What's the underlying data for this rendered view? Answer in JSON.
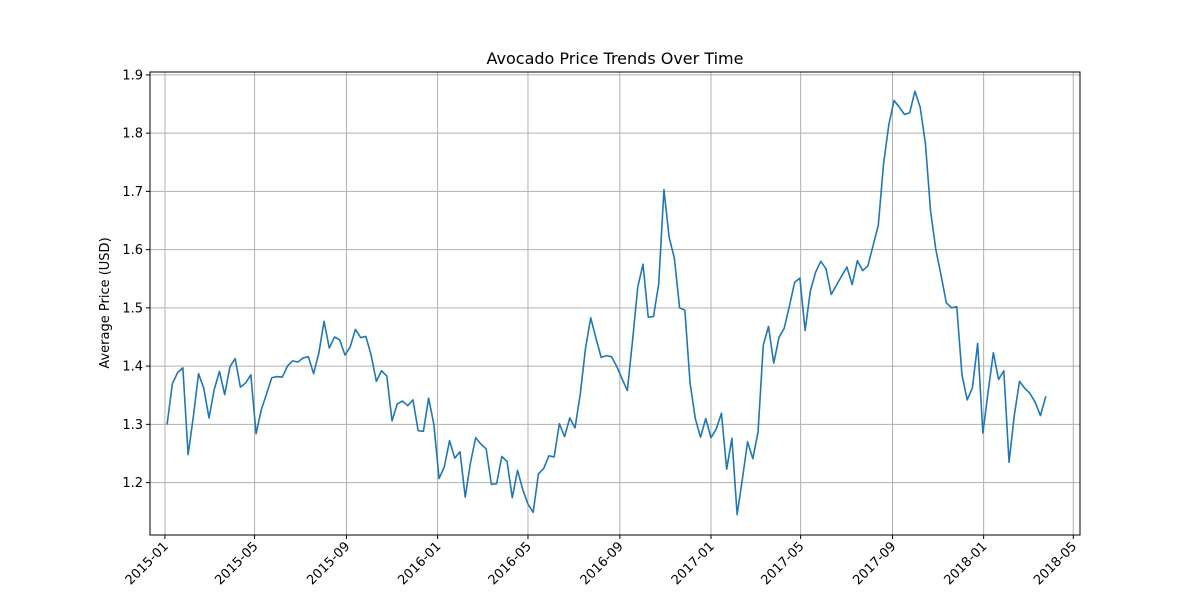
{
  "chart_data": {
    "type": "line",
    "title": "Avocado Price Trends Over Time",
    "xlabel": "",
    "ylabel": "Average Price (USD)",
    "grid": true,
    "x_axis_type": "date",
    "xlim": [
      "2014-12-12",
      "2018-05-10"
    ],
    "ylim": [
      1.11,
      1.905
    ],
    "x_ticks": [
      "2015-01",
      "2015-05",
      "2015-09",
      "2016-01",
      "2016-05",
      "2016-09",
      "2017-01",
      "2017-05",
      "2017-09",
      "2018-01",
      "2018-05"
    ],
    "y_ticks": [
      1.2,
      1.3,
      1.4,
      1.5,
      1.6,
      1.7,
      1.8,
      1.9
    ],
    "series_color": "#1f77b4",
    "series": [
      {
        "x": [
          "2015-01-04",
          "2015-01-11",
          "2015-01-18",
          "2015-01-25",
          "2015-02-01",
          "2015-02-08",
          "2015-02-15",
          "2015-02-22",
          "2015-03-01",
          "2015-03-08",
          "2015-03-15",
          "2015-03-22",
          "2015-03-29",
          "2015-04-05",
          "2015-04-12",
          "2015-04-19",
          "2015-04-26",
          "2015-05-03",
          "2015-05-10",
          "2015-05-17",
          "2015-05-24",
          "2015-05-31",
          "2015-06-07",
          "2015-06-14",
          "2015-06-21",
          "2015-06-28",
          "2015-07-05",
          "2015-07-12",
          "2015-07-19",
          "2015-07-26",
          "2015-08-02",
          "2015-08-09",
          "2015-08-16",
          "2015-08-23",
          "2015-08-30",
          "2015-09-06",
          "2015-09-13",
          "2015-09-20",
          "2015-09-27",
          "2015-10-04",
          "2015-10-11",
          "2015-10-18",
          "2015-10-25",
          "2015-11-01",
          "2015-11-08",
          "2015-11-15",
          "2015-11-22",
          "2015-11-29",
          "2015-12-06",
          "2015-12-13",
          "2015-12-20",
          "2015-12-27",
          "2016-01-03",
          "2016-01-10",
          "2016-01-17",
          "2016-01-24",
          "2016-01-31",
          "2016-02-07",
          "2016-02-14",
          "2016-02-21",
          "2016-02-28",
          "2016-03-06",
          "2016-03-13",
          "2016-03-20",
          "2016-03-27",
          "2016-04-03",
          "2016-04-10",
          "2016-04-17",
          "2016-04-24",
          "2016-05-01",
          "2016-05-08",
          "2016-05-15",
          "2016-05-22",
          "2016-05-29",
          "2016-06-05",
          "2016-06-12",
          "2016-06-19",
          "2016-06-26",
          "2016-07-03",
          "2016-07-10",
          "2016-07-17",
          "2016-07-24",
          "2016-07-31",
          "2016-08-07",
          "2016-08-14",
          "2016-08-21",
          "2016-08-28",
          "2016-09-04",
          "2016-09-11",
          "2016-09-18",
          "2016-09-25",
          "2016-10-02",
          "2016-10-09",
          "2016-10-16",
          "2016-10-23",
          "2016-10-30",
          "2016-11-06",
          "2016-11-13",
          "2016-11-20",
          "2016-11-27",
          "2016-12-04",
          "2016-12-11",
          "2016-12-18",
          "2016-12-25",
          "2017-01-01",
          "2017-01-08",
          "2017-01-15",
          "2017-01-22",
          "2017-01-29",
          "2017-02-05",
          "2017-02-12",
          "2017-02-19",
          "2017-02-26",
          "2017-03-05",
          "2017-03-12",
          "2017-03-19",
          "2017-03-26",
          "2017-04-02",
          "2017-04-09",
          "2017-04-16",
          "2017-04-23",
          "2017-04-30",
          "2017-05-07",
          "2017-05-14",
          "2017-05-21",
          "2017-05-28",
          "2017-06-04",
          "2017-06-11",
          "2017-06-18",
          "2017-06-25",
          "2017-07-02",
          "2017-07-09",
          "2017-07-16",
          "2017-07-23",
          "2017-07-30",
          "2017-08-06",
          "2017-08-13",
          "2017-08-20",
          "2017-08-27",
          "2017-09-03",
          "2017-09-10",
          "2017-09-17",
          "2017-09-24",
          "2017-10-01",
          "2017-10-08",
          "2017-10-15",
          "2017-10-22",
          "2017-10-29",
          "2017-11-05",
          "2017-11-12",
          "2017-11-19",
          "2017-11-26",
          "2017-12-03",
          "2017-12-10",
          "2017-12-17",
          "2017-12-24",
          "2017-12-31",
          "2018-01-07",
          "2018-01-14",
          "2018-01-21",
          "2018-01-28",
          "2018-02-04",
          "2018-02-11",
          "2018-02-18",
          "2018-02-25",
          "2018-03-04",
          "2018-03-11",
          "2018-03-18",
          "2018-03-25"
        ],
        "values": [
          1.301,
          1.37,
          1.389,
          1.397,
          1.248,
          1.313,
          1.387,
          1.362,
          1.311,
          1.36,
          1.391,
          1.351,
          1.399,
          1.413,
          1.364,
          1.371,
          1.385,
          1.284,
          1.325,
          1.352,
          1.38,
          1.382,
          1.381,
          1.4,
          1.409,
          1.407,
          1.414,
          1.416,
          1.387,
          1.422,
          1.477,
          1.431,
          1.45,
          1.445,
          1.419,
          1.433,
          1.463,
          1.449,
          1.451,
          1.419,
          1.374,
          1.392,
          1.383,
          1.306,
          1.335,
          1.34,
          1.332,
          1.342,
          1.289,
          1.288,
          1.345,
          1.3,
          1.207,
          1.227,
          1.272,
          1.242,
          1.253,
          1.175,
          1.234,
          1.277,
          1.266,
          1.258,
          1.197,
          1.198,
          1.245,
          1.236,
          1.174,
          1.221,
          1.188,
          1.163,
          1.149,
          1.215,
          1.224,
          1.246,
          1.244,
          1.301,
          1.279,
          1.311,
          1.294,
          1.352,
          1.43,
          1.483,
          1.448,
          1.415,
          1.418,
          1.416,
          1.399,
          1.378,
          1.358,
          1.444,
          1.536,
          1.575,
          1.484,
          1.485,
          1.541,
          1.703,
          1.621,
          1.585,
          1.5,
          1.496,
          1.371,
          1.31,
          1.278,
          1.31,
          1.277,
          1.292,
          1.319,
          1.223,
          1.276,
          1.145,
          1.206,
          1.27,
          1.241,
          1.287,
          1.436,
          1.468,
          1.405,
          1.449,
          1.465,
          1.503,
          1.544,
          1.551,
          1.461,
          1.529,
          1.561,
          1.58,
          1.567,
          1.523,
          1.539,
          1.555,
          1.57,
          1.54,
          1.581,
          1.564,
          1.572,
          1.607,
          1.642,
          1.747,
          1.814,
          1.856,
          1.845,
          1.832,
          1.835,
          1.872,
          1.845,
          1.783,
          1.666,
          1.6,
          1.556,
          1.509,
          1.5,
          1.502,
          1.385,
          1.342,
          1.363,
          1.439,
          1.285,
          1.356,
          1.423,
          1.377,
          1.392,
          1.235,
          1.315,
          1.374,
          1.362,
          1.353,
          1.338,
          1.315,
          1.347
        ]
      }
    ]
  }
}
